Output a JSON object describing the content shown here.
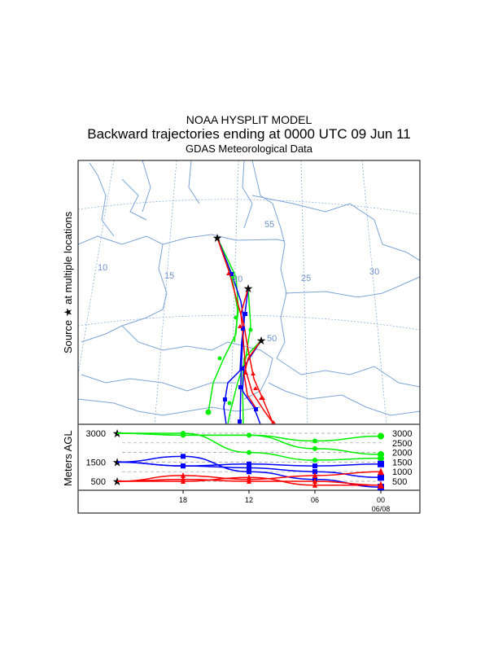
{
  "title": {
    "line1": "NOAA HYSPLIT MODEL",
    "line2": "Backward trajectories ending at 0000 UTC 09 Jun 11",
    "line3": "GDAS Meteorological Data"
  },
  "left_label": "Source ★ at multiple locations",
  "left_label_parts": {
    "a": "Source",
    "star": "★",
    "b": "at multiple locations"
  },
  "vertical_label": "Meters AGL",
  "map_labels": {
    "lon": [
      "10",
      "15",
      "20",
      "25",
      "30"
    ],
    "lat": [
      "55",
      "50"
    ]
  },
  "colors": {
    "red": "#ff0000",
    "blue": "#0000ff",
    "green": "#00ee00",
    "map": "#7ea3d4"
  },
  "chart_data": {
    "type": "line",
    "xlabel": "",
    "ylabel": "Meters AGL",
    "x_ticks": [
      "18",
      "12",
      "06",
      "00"
    ],
    "x_date": "06/08",
    "x_hours_back": [
      0,
      6,
      12,
      18,
      24
    ],
    "y_ticks_left": [
      "500",
      "1500",
      "3000"
    ],
    "y_ticks_right": [
      "3000",
      "2500",
      "2000",
      "1500",
      "1000",
      "500"
    ],
    "ylim": [
      0,
      3200
    ],
    "series": [
      {
        "name": "green-1",
        "color": "green",
        "marker": "circle",
        "values": [
          3000,
          2900,
          2900,
          2600,
          2850
        ]
      },
      {
        "name": "green-2",
        "color": "green",
        "marker": "circle",
        "values": [
          3000,
          2900,
          2900,
          2200,
          1900
        ]
      },
      {
        "name": "green-3",
        "color": "green",
        "marker": "circle",
        "values": [
          3000,
          3000,
          2000,
          1600,
          1700
        ]
      },
      {
        "name": "blue-1",
        "color": "blue",
        "marker": "square",
        "values": [
          1500,
          1800,
          1000,
          600,
          200
        ]
      },
      {
        "name": "blue-2",
        "color": "blue",
        "marker": "square",
        "values": [
          1500,
          1300,
          1400,
          1300,
          1400
        ]
      },
      {
        "name": "blue-3",
        "color": "blue",
        "marker": "square",
        "values": [
          1500,
          1300,
          1200,
          1000,
          700
        ]
      },
      {
        "name": "red-1",
        "color": "red",
        "marker": "triangle",
        "values": [
          500,
          800,
          600,
          800,
          1000
        ]
      },
      {
        "name": "red-2",
        "color": "red",
        "marker": "triangle",
        "values": [
          500,
          500,
          700,
          300,
          300
        ]
      },
      {
        "name": "red-3",
        "color": "red",
        "marker": "triangle",
        "values": [
          500,
          600,
          500,
          500,
          300
        ]
      }
    ]
  }
}
